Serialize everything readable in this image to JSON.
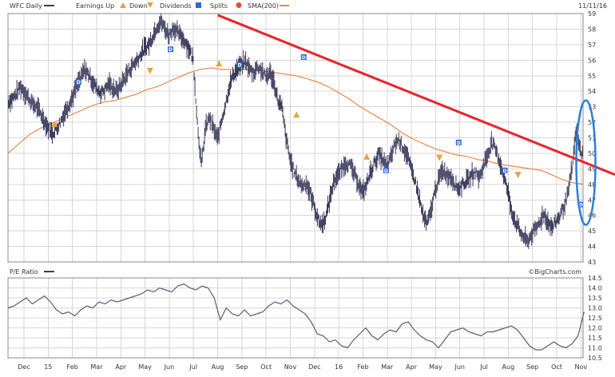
{
  "header": {
    "ticker_label": "WFC Daily",
    "legend_earnings": "Earnings Up",
    "legend_down": "Down",
    "legend_dividends": "Dividends",
    "legend_splits": "Splits",
    "legend_sma": "SMA(200)",
    "date": "11/11/16"
  },
  "pe_panel": {
    "label": "P/E Ratio",
    "watermark": "©BigCharts.com"
  },
  "colors": {
    "price": "#3a3a5c",
    "sma": "#e8884a",
    "trendline": "#e8232a",
    "ellipse": "#2d7fd6",
    "pe": "#5a5a78",
    "earnings_up": "#e8a040",
    "dividend": "#2a6ad6",
    "split": "#e05030"
  },
  "chart_data": [
    {
      "type": "line",
      "title": "WFC Daily",
      "x_labels": [
        "Dec",
        "15",
        "Feb",
        "Mar",
        "Apr",
        "May",
        "Jun",
        "Jul",
        "Aug",
        "Sep",
        "Oct",
        "Nov",
        "Dec",
        "16",
        "Feb",
        "Mar",
        "Apr",
        "May",
        "Jun",
        "Jul",
        "Aug",
        "Sep",
        "Oct",
        "Nov"
      ],
      "ylim": [
        43,
        59
      ],
      "y_ticks": [
        43,
        44,
        45,
        46,
        47,
        48,
        49,
        50,
        51,
        52,
        53,
        54,
        55,
        56,
        57,
        58,
        59
      ],
      "series": [
        {
          "name": "WFC Daily",
          "style": "ohlc-bars",
          "values": [
            53.3,
            53.5,
            53.8,
            54.3,
            54.0,
            53.6,
            53.2,
            53.0,
            52.6,
            52.1,
            51.6,
            51.3,
            51.6,
            52.0,
            52.6,
            53.1,
            53.6,
            54.3,
            54.8,
            55.4,
            55.1,
            54.6,
            54.2,
            53.9,
            54.1,
            54.5,
            54.2,
            54.0,
            54.4,
            54.9,
            55.3,
            55.7,
            56.0,
            56.4,
            56.8,
            57.0,
            57.6,
            58.2,
            58.5,
            58.0,
            57.6,
            58.1,
            57.8,
            57.5,
            57.2,
            56.7,
            56.0,
            52.0,
            49.2,
            51.6,
            52.3,
            51.6,
            50.9,
            52.1,
            53.2,
            54.4,
            55.1,
            55.5,
            55.7,
            55.9,
            55.4,
            55.2,
            55.6,
            55.3,
            54.9,
            55.2,
            54.6,
            53.4,
            52.9,
            51.0,
            49.6,
            48.8,
            48.3,
            47.9,
            48.1,
            47.4,
            46.6,
            45.7,
            45.4,
            46.0,
            47.2,
            48.3,
            48.6,
            49.1,
            49.4,
            49.2,
            48.6,
            48.1,
            47.4,
            48.0,
            48.8,
            49.4,
            49.9,
            49.6,
            49.1,
            49.7,
            50.6,
            50.9,
            50.4,
            49.9,
            49.0,
            48.3,
            47.2,
            46.0,
            45.4,
            46.3,
            47.6,
            48.4,
            48.9,
            48.6,
            48.5,
            48.0,
            47.7,
            48.1,
            48.2,
            48.6,
            48.8,
            48.4,
            49.2,
            49.9,
            50.7,
            50.2,
            49.5,
            48.6,
            47.6,
            46.3,
            45.6,
            45.0,
            44.6,
            44.3,
            44.8,
            45.1,
            45.6,
            46.1,
            45.6,
            45.2,
            45.6,
            46.0,
            46.6,
            47.4,
            49.0,
            51.4,
            50.2,
            49.8
          ],
          "sample_step_days": 5
        },
        {
          "name": "SMA(200)",
          "values": [
            50.0,
            50.6,
            51.2,
            51.6,
            51.9,
            52.2,
            52.5,
            52.8,
            53.1,
            53.3,
            53.4,
            53.6,
            53.8,
            54.1,
            54.3,
            54.6,
            54.9,
            55.2,
            55.4,
            55.5,
            55.4,
            55.4,
            55.4,
            55.4,
            55.3,
            55.2,
            55.1,
            55.0,
            54.8,
            54.6,
            54.3,
            53.9,
            53.5,
            53.0,
            52.6,
            52.2,
            51.8,
            51.3,
            50.9,
            50.6,
            50.3,
            50.1,
            49.9,
            49.8,
            49.6,
            49.5,
            49.3,
            49.2,
            49.1,
            49.0,
            48.9,
            48.6,
            48.3,
            48.1,
            48.0
          ],
          "sample_step_days": 12
        }
      ],
      "annotations": [
        {
          "type": "trendline",
          "label": "",
          "from": {
            "month_index": 8.4,
            "value": 58.9
          },
          "to": {
            "month_index": 24.2,
            "value": 49.0
          }
        },
        {
          "type": "ellipse",
          "label": "",
          "center": {
            "month_index": 23.6,
            "value": 49.4
          }
        }
      ],
      "events": {
        "earnings_up": [
          {
            "month_index": 1.65,
            "value": 51.9
          },
          {
            "month_index": 8.45,
            "value": 55.8
          },
          {
            "month_index": 11.65,
            "value": 52.5
          },
          {
            "month_index": 14.55,
            "value": 49.8
          }
        ],
        "earnings_down": [
          {
            "month_index": 5.6,
            "value": 55.3
          },
          {
            "month_index": 17.55,
            "value": 49.7
          },
          {
            "month_index": 20.8,
            "value": 48.6
          }
        ],
        "dividends": [
          {
            "month_index": 2.65,
            "value": 54.6
          },
          {
            "month_index": 6.45,
            "value": 56.7
          },
          {
            "month_index": 9.3,
            "value": 55.7
          },
          {
            "month_index": 11.95,
            "value": 56.2
          },
          {
            "month_index": 15.35,
            "value": 48.9
          },
          {
            "month_index": 18.35,
            "value": 50.7
          },
          {
            "month_index": 20.25,
            "value": 48.9
          },
          {
            "month_index": 23.4,
            "value": 46.7
          }
        ]
      }
    },
    {
      "type": "line",
      "title": "P/E Ratio",
      "ylim": [
        10.5,
        14.5
      ],
      "y_ticks": [
        10.5,
        11.0,
        11.5,
        12.0,
        12.5,
        13.0,
        13.5,
        14.0,
        14.5
      ],
      "series": [
        {
          "name": "P/E Ratio",
          "values": [
            13.0,
            13.1,
            13.3,
            13.5,
            13.2,
            13.4,
            13.6,
            13.3,
            12.9,
            12.7,
            12.8,
            12.6,
            12.9,
            13.1,
            13.0,
            13.3,
            13.2,
            13.4,
            13.3,
            13.4,
            13.5,
            13.6,
            13.7,
            13.9,
            13.8,
            14.0,
            13.9,
            13.8,
            14.1,
            14.2,
            14.0,
            13.9,
            14.1,
            14.0,
            13.5,
            12.4,
            13.0,
            12.7,
            12.6,
            12.9,
            12.6,
            12.7,
            12.8,
            13.1,
            13.3,
            13.2,
            13.4,
            13.1,
            12.9,
            12.7,
            12.3,
            11.7,
            11.6,
            11.3,
            11.4,
            11.1,
            11.0,
            11.4,
            11.7,
            12.0,
            11.6,
            11.4,
            11.7,
            11.9,
            11.8,
            12.2,
            12.3,
            11.9,
            11.6,
            11.4,
            11.3,
            11.0,
            11.4,
            11.8,
            11.9,
            12.0,
            11.8,
            11.7,
            11.6,
            11.8,
            11.8,
            11.9,
            12.0,
            12.1,
            11.9,
            11.5,
            11.1,
            10.9,
            10.9,
            11.1,
            11.3,
            11.1,
            11.0,
            11.2,
            11.6,
            12.8
          ],
          "sample_step_days": 7
        }
      ]
    }
  ]
}
